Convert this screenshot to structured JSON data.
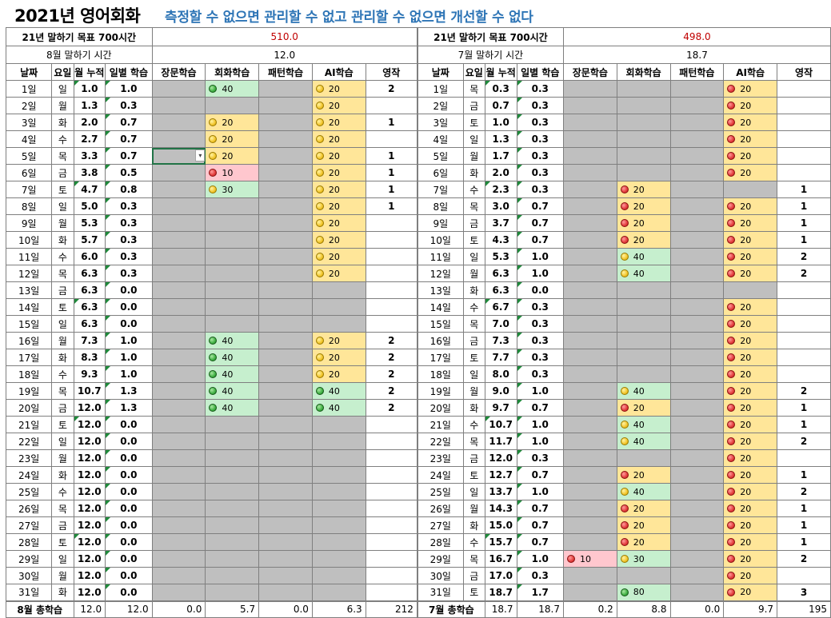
{
  "title": "2021년 영어회화",
  "motto": "측정할 수 없으면 관리할 수 없고 관리할 수 없으면 개선할 수 없다",
  "left": {
    "goal_label": "21년 말하기 목표 700시간",
    "goal_value": "510.0",
    "month_label": "8월 말하기 시간",
    "month_value": "12.0",
    "total_label": "8월 총학습",
    "totals": [
      "12.0",
      "12.0",
      "0.0",
      "5.7",
      "0.0",
      "6.3",
      "212"
    ],
    "rows": [
      [
        "1일",
        "일",
        "1.0",
        "1.0",
        "",
        "g:40",
        "",
        "y:20",
        "2"
      ],
      [
        "2일",
        "월",
        "1.3",
        "0.3",
        "",
        "",
        "",
        "y:20",
        ""
      ],
      [
        "3일",
        "화",
        "2.0",
        "0.7",
        "",
        "y:20",
        "",
        "y:20",
        "1"
      ],
      [
        "4일",
        "수",
        "2.7",
        "0.7",
        "",
        "y:20",
        "",
        "y:20",
        ""
      ],
      [
        "5일",
        "목",
        "3.3",
        "0.7",
        "",
        "y:20",
        "",
        "y:20",
        "1"
      ],
      [
        "6일",
        "금",
        "3.8",
        "0.5",
        "",
        "r:10",
        "",
        "y:20",
        "1"
      ],
      [
        "7일",
        "토",
        "4.7",
        "0.8",
        "",
        "yg:30",
        "",
        "y:20",
        "1"
      ],
      [
        "8일",
        "일",
        "5.0",
        "0.3",
        "",
        "",
        "",
        "y:20",
        "1"
      ],
      [
        "9일",
        "월",
        "5.3",
        "0.3",
        "",
        "",
        "",
        "y:20",
        ""
      ],
      [
        "10일",
        "화",
        "5.7",
        "0.3",
        "",
        "",
        "",
        "y:20",
        ""
      ],
      [
        "11일",
        "수",
        "6.0",
        "0.3",
        "",
        "",
        "",
        "y:20",
        ""
      ],
      [
        "12일",
        "목",
        "6.3",
        "0.3",
        "",
        "",
        "",
        "y:20",
        ""
      ],
      [
        "13일",
        "금",
        "6.3",
        "0.0",
        "",
        "",
        "",
        "",
        ""
      ],
      [
        "14일",
        "토",
        "6.3",
        "0.0",
        "",
        "",
        "",
        "",
        ""
      ],
      [
        "15일",
        "일",
        "6.3",
        "0.0",
        "",
        "",
        "",
        "",
        ""
      ],
      [
        "16일",
        "월",
        "7.3",
        "1.0",
        "",
        "g:40",
        "",
        "y:20",
        "2"
      ],
      [
        "17일",
        "화",
        "8.3",
        "1.0",
        "",
        "g:40",
        "",
        "y:20",
        "2"
      ],
      [
        "18일",
        "수",
        "9.3",
        "1.0",
        "",
        "g:40",
        "",
        "y:20",
        "2"
      ],
      [
        "19일",
        "목",
        "10.7",
        "1.3",
        "",
        "g:40",
        "",
        "g:40",
        "2"
      ],
      [
        "20일",
        "금",
        "12.0",
        "1.3",
        "",
        "g:40",
        "",
        "g:40",
        "2"
      ],
      [
        "21일",
        "토",
        "12.0",
        "0.0",
        "",
        "",
        "",
        "",
        ""
      ],
      [
        "22일",
        "일",
        "12.0",
        "0.0",
        "",
        "",
        "",
        "",
        ""
      ],
      [
        "23일",
        "월",
        "12.0",
        "0.0",
        "",
        "",
        "",
        "",
        ""
      ],
      [
        "24일",
        "화",
        "12.0",
        "0.0",
        "",
        "",
        "",
        "",
        ""
      ],
      [
        "25일",
        "수",
        "12.0",
        "0.0",
        "",
        "",
        "",
        "",
        ""
      ],
      [
        "26일",
        "목",
        "12.0",
        "0.0",
        "",
        "",
        "",
        "",
        ""
      ],
      [
        "27일",
        "금",
        "12.0",
        "0.0",
        "",
        "",
        "",
        "",
        ""
      ],
      [
        "28일",
        "토",
        "12.0",
        "0.0",
        "",
        "",
        "",
        "",
        ""
      ],
      [
        "29일",
        "일",
        "12.0",
        "0.0",
        "",
        "",
        "",
        "",
        ""
      ],
      [
        "30일",
        "월",
        "12.0",
        "0.0",
        "",
        "",
        "",
        "",
        ""
      ],
      [
        "31일",
        "화",
        "12.0",
        "0.0",
        "",
        "",
        "",
        "",
        ""
      ]
    ]
  },
  "right": {
    "goal_label": "21년 말하기 목표 700시간",
    "goal_value": "498.0",
    "month_label": "7월 말하기 시간",
    "month_value": "18.7",
    "total_label": "7월 총학습",
    "totals": [
      "18.7",
      "18.7",
      "0.2",
      "8.8",
      "0.0",
      "9.7",
      "195"
    ],
    "rows": [
      [
        "1일",
        "목",
        "0.3",
        "0.3",
        "",
        "",
        "",
        "r:20",
        ""
      ],
      [
        "2일",
        "금",
        "0.7",
        "0.3",
        "",
        "",
        "",
        "r:20",
        ""
      ],
      [
        "3일",
        "토",
        "1.0",
        "0.3",
        "",
        "",
        "",
        "r:20",
        ""
      ],
      [
        "4일",
        "일",
        "1.3",
        "0.3",
        "",
        "",
        "",
        "r:20",
        ""
      ],
      [
        "5일",
        "월",
        "1.7",
        "0.3",
        "",
        "",
        "",
        "r:20",
        ""
      ],
      [
        "6일",
        "화",
        "2.0",
        "0.3",
        "",
        "",
        "",
        "r:20",
        ""
      ],
      [
        "7일",
        "수",
        "2.3",
        "0.3",
        "",
        "ry:20",
        "",
        "",
        "1"
      ],
      [
        "8일",
        "목",
        "3.0",
        "0.7",
        "",
        "ry:20",
        "",
        "r:20",
        "1"
      ],
      [
        "9일",
        "금",
        "3.7",
        "0.7",
        "",
        "ry:20",
        "",
        "r:20",
        "1"
      ],
      [
        "10일",
        "토",
        "4.3",
        "0.7",
        "",
        "ry:20",
        "",
        "r:20",
        "1"
      ],
      [
        "11일",
        "일",
        "5.3",
        "1.0",
        "",
        "yg:40",
        "",
        "r:20",
        "2"
      ],
      [
        "12일",
        "월",
        "6.3",
        "1.0",
        "",
        "yg:40",
        "",
        "r:20",
        "2"
      ],
      [
        "13일",
        "화",
        "6.3",
        "0.0",
        "",
        "",
        "",
        "",
        ""
      ],
      [
        "14일",
        "수",
        "6.7",
        "0.3",
        "",
        "",
        "",
        "r:20",
        ""
      ],
      [
        "15일",
        "목",
        "7.0",
        "0.3",
        "",
        "",
        "",
        "r:20",
        ""
      ],
      [
        "16일",
        "금",
        "7.3",
        "0.3",
        "",
        "",
        "",
        "r:20",
        ""
      ],
      [
        "17일",
        "토",
        "7.7",
        "0.3",
        "",
        "",
        "",
        "r:20",
        ""
      ],
      [
        "18일",
        "일",
        "8.0",
        "0.3",
        "",
        "",
        "",
        "r:20",
        ""
      ],
      [
        "19일",
        "월",
        "9.0",
        "1.0",
        "",
        "yg:40",
        "",
        "r:20",
        "2"
      ],
      [
        "20일",
        "화",
        "9.7",
        "0.7",
        "",
        "ry:20",
        "",
        "r:20",
        "1"
      ],
      [
        "21일",
        "수",
        "10.7",
        "1.0",
        "",
        "yg:40",
        "",
        "r:20",
        "1"
      ],
      [
        "22일",
        "목",
        "11.7",
        "1.0",
        "",
        "yg:40",
        "",
        "r:20",
        "2"
      ],
      [
        "23일",
        "금",
        "12.0",
        "0.3",
        "",
        "",
        "",
        "r:20",
        ""
      ],
      [
        "24일",
        "토",
        "12.7",
        "0.7",
        "",
        "ry:20",
        "",
        "r:20",
        "1"
      ],
      [
        "25일",
        "일",
        "13.7",
        "1.0",
        "",
        "yg:40",
        "",
        "r:20",
        "2"
      ],
      [
        "26일",
        "월",
        "14.3",
        "0.7",
        "",
        "ry:20",
        "",
        "r:20",
        "1"
      ],
      [
        "27일",
        "화",
        "15.0",
        "0.7",
        "",
        "ry:20",
        "",
        "r:20",
        "1"
      ],
      [
        "28일",
        "수",
        "15.7",
        "0.7",
        "",
        "ry:20",
        "",
        "r:20",
        "1"
      ],
      [
        "29일",
        "목",
        "16.7",
        "1.0",
        "rp:10",
        "yg:30",
        "",
        "r:20",
        "2"
      ],
      [
        "30일",
        "금",
        "17.0",
        "0.3",
        "",
        "",
        "",
        "r:20",
        ""
      ],
      [
        "31일",
        "토",
        "18.7",
        "1.7",
        "",
        "g:80",
        "",
        "r:20",
        "3"
      ]
    ]
  },
  "headers": [
    "날짜",
    "요일",
    "월 누적",
    "일별 학습",
    "장문학습",
    "회화학습",
    "패턴학습",
    "AI학습",
    "영작"
  ],
  "colors": {
    "gray": "#bfbfbf",
    "yellow": "#ffe699",
    "green": "#c6efce",
    "pink": "#ffc7ce",
    "goal_red": "#c00000",
    "motto_blue": "#2e75b6"
  },
  "icons": {
    "red": "red-circle-icon",
    "yellow": "yellow-circle-icon",
    "green": "green-circle-icon"
  }
}
